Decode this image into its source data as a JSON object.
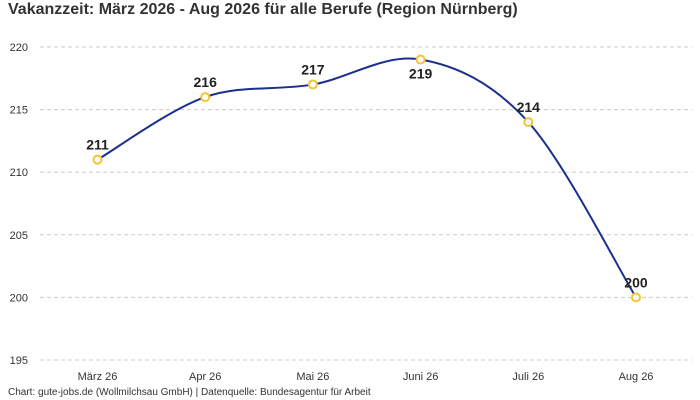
{
  "chart_data": {
    "type": "line",
    "title": "Vakanzzeit: März 2026 - Aug 2026 für alle Berufe (Region Nürnberg)",
    "categories": [
      "März 26",
      "Apr 26",
      "Mai 26",
      "Juni 26",
      "Juli 26",
      "Aug 26"
    ],
    "series": [
      {
        "values": [
          211,
          216,
          217,
          219,
          214,
          200
        ]
      }
    ],
    "ylim": [
      195,
      220
    ],
    "yticks": [
      195,
      200,
      205,
      210,
      215,
      220
    ],
    "grid": true,
    "xlabel": "",
    "ylabel": "",
    "colors": {
      "line": "#1a2f8f",
      "marker_stroke": "#f2c531",
      "marker_fill": "#ffffff",
      "grid": "#cccccc"
    }
  },
  "footer": "Chart: gute-jobs.de (Wollmilchsau GmbH) | Datenquelle: Bundesagentur für Arbeit"
}
